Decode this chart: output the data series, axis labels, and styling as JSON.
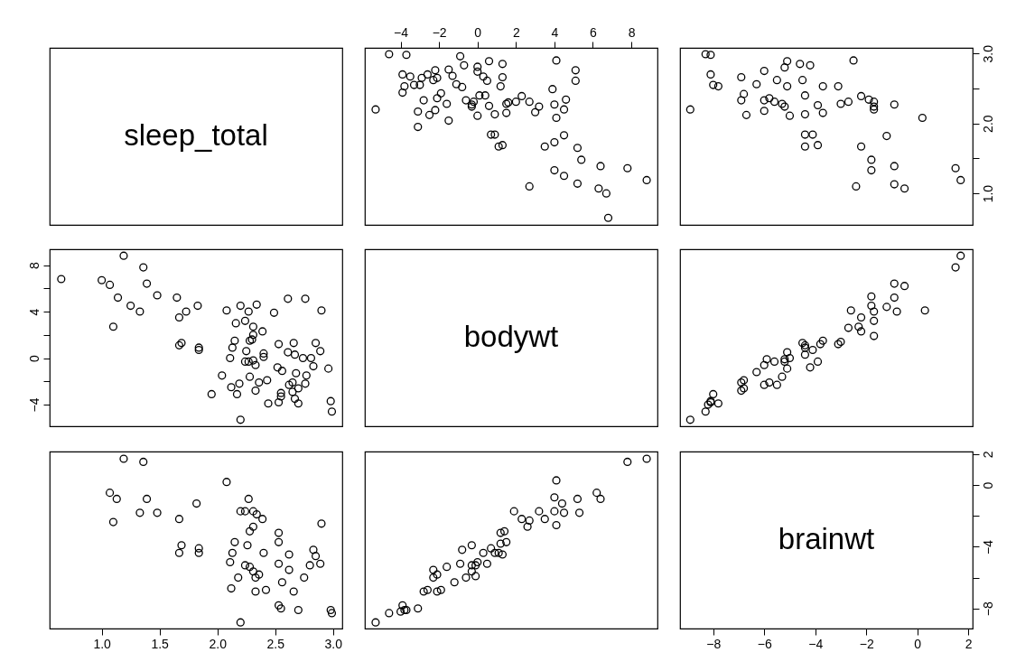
{
  "chart_data": [
    {
      "type": "other",
      "title": "sleep_total"
    },
    {
      "type": "scatter",
      "marker": "circle",
      "color": "#000000",
      "tick_labels": "x",
      "xlim": [
        -5.86,
        9.36
      ],
      "ylim": [
        0.55,
        3.08
      ],
      "xticks": [
        {
          "value": -4,
          "label": "−4"
        },
        {
          "value": -2,
          "label": "−2"
        },
        0,
        2,
        4,
        6,
        8
      ],
      "x": [
        6.8,
        6.7,
        6.3,
        8.8,
        5.2,
        2.7,
        4.5,
        4.0,
        7.8,
        6.4,
        5.4,
        5.2,
        3.5,
        4.0,
        1.1,
        1.3,
        4.5,
        0.9,
        0.7,
        4.1,
        -1.5,
        -3.1,
        0.0,
        0.9,
        1.5,
        3.0,
        -2.5,
        -3.1,
        -2.2,
        4.5,
        -5.3,
        3.2,
        4.0,
        0.6,
        -0.3,
        -0.3,
        -1.6,
        2.7,
        2.0,
        1.6,
        1.5,
        -0.2,
        -0.6,
        4.6,
        -2.8,
        -2.1,
        2.3,
        0.4,
        0.1,
        -1.9,
        -3.9,
        3.9,
        1.2,
        -0.8,
        -1.1,
        -3.8,
        -3.3,
        -3.0,
        5.1,
        0.5,
        -2.3,
        -2.9,
        1.3,
        0.3,
        -2.1,
        -1.3,
        -3.5,
        -3.9,
        -2.6,
        0.0,
        5.1,
        -2.2,
        -1.5,
        0.0,
        -0.7,
        1.3,
        0.6,
        4.1,
        -0.9,
        -3.7,
        -4.6
      ],
      "values": [
        0.65,
        1.0,
        1.07,
        1.19,
        1.14,
        1.1,
        1.25,
        1.33,
        1.36,
        1.39,
        1.48,
        1.65,
        1.67,
        1.73,
        1.67,
        1.69,
        1.83,
        1.84,
        1.84,
        2.08,
        2.04,
        1.95,
        2.11,
        2.13,
        2.15,
        2.16,
        2.12,
        2.17,
        2.19,
        2.2,
        2.2,
        2.24,
        2.27,
        2.25,
        2.24,
        2.27,
        2.28,
        2.31,
        2.31,
        2.3,
        2.28,
        2.31,
        2.33,
        2.34,
        2.33,
        2.36,
        2.39,
        2.4,
        2.4,
        2.43,
        2.44,
        2.49,
        2.53,
        2.52,
        2.56,
        2.53,
        2.55,
        2.55,
        2.61,
        2.61,
        2.62,
        2.65,
        2.66,
        2.67,
        2.65,
        2.68,
        2.67,
        2.7,
        2.7,
        2.74,
        2.76,
        2.76,
        2.77,
        2.81,
        2.83,
        2.85,
        2.89,
        2.9,
        2.96,
        2.98,
        2.99
      ]
    },
    {
      "type": "scatter",
      "marker": "circle",
      "color": "#000000",
      "tick_labels": "y",
      "xlim": [
        -9.3,
        2.17
      ],
      "ylim": [
        0.55,
        3.08
      ],
      "yticks": [
        {
          "value": 1,
          "label": "1.0"
        },
        {
          "value": 1.5,
          "label": null
        },
        {
          "value": 2,
          "label": "2.0"
        },
        {
          "value": 2.5,
          "label": null
        },
        {
          "value": 3,
          "label": "3.0"
        }
      ],
      "x": [
        1.7,
        1.5,
        -0.5,
        -0.9,
        -0.9,
        -2.4,
        -1.8,
        -1.8,
        -2.2,
        -1.2,
        -3.9,
        -4.4,
        -4.1,
        -4.4,
        0.2,
        -0.9,
        -1.7,
        -1.7,
        -1.7,
        -1.9,
        -2.2,
        -2.7,
        -3.0,
        -3.7,
        -3.9,
        -4.4,
        -5.0,
        -5.2,
        -5.3,
        -5.6,
        -5.8,
        -6.0,
        -6.0,
        -6.7,
        -6.9,
        -6.8,
        -8.9,
        -4.4,
        -3.1,
        -3.7,
        -5.1,
        -4.5,
        -5.5,
        -6.3,
        -6.9,
        -7.8,
        -8.0,
        -8.1,
        -6.0,
        -4.2,
        -4.6,
        -5.2,
        -5.1,
        -2.5,
        -8.1,
        -8.3
      ],
      "values": [
        1.19,
        1.36,
        1.07,
        1.13,
        1.39,
        1.1,
        1.33,
        1.48,
        1.67,
        1.82,
        1.69,
        1.67,
        1.84,
        1.84,
        2.08,
        2.27,
        2.2,
        2.24,
        2.31,
        2.34,
        2.39,
        2.31,
        2.28,
        2.15,
        2.26,
        2.13,
        2.11,
        2.24,
        2.28,
        2.31,
        2.36,
        2.33,
        2.18,
        2.12,
        2.33,
        2.42,
        2.2,
        2.4,
        2.53,
        2.53,
        2.53,
        2.62,
        2.62,
        2.56,
        2.66,
        2.53,
        2.55,
        2.7,
        2.75,
        2.83,
        2.85,
        2.8,
        2.89,
        2.9,
        2.98,
        2.99
      ]
    },
    {
      "type": "scatter",
      "marker": "circle",
      "color": "#000000",
      "tick_labels": "y",
      "xlim": [
        0.55,
        3.08
      ],
      "ylim": [
        -5.86,
        9.36
      ],
      "yticks": [
        {
          "value": -4,
          "label": "−4"
        },
        {
          "value": -2,
          "label": null
        },
        {
          "value": 0,
          "label": "0"
        },
        {
          "value": 2,
          "label": null
        },
        {
          "value": 4,
          "label": "4"
        },
        {
          "value": 6,
          "label": null
        },
        {
          "value": 8,
          "label": "8"
        }
      ],
      "x": [
        0.65,
        1.0,
        1.07,
        1.19,
        1.14,
        1.1,
        1.25,
        1.33,
        1.36,
        1.39,
        1.48,
        1.65,
        1.67,
        1.73,
        1.67,
        1.69,
        1.83,
        1.84,
        1.84,
        2.08,
        2.04,
        1.95,
        2.11,
        2.13,
        2.15,
        2.16,
        2.12,
        2.17,
        2.19,
        2.2,
        2.2,
        2.24,
        2.27,
        2.25,
        2.24,
        2.27,
        2.28,
        2.31,
        2.31,
        2.3,
        2.28,
        2.31,
        2.33,
        2.34,
        2.33,
        2.36,
        2.39,
        2.4,
        2.4,
        2.43,
        2.44,
        2.49,
        2.53,
        2.52,
        2.56,
        2.53,
        2.55,
        2.55,
        2.61,
        2.61,
        2.62,
        2.65,
        2.66,
        2.67,
        2.65,
        2.68,
        2.67,
        2.7,
        2.7,
        2.74,
        2.76,
        2.76,
        2.77,
        2.81,
        2.83,
        2.85,
        2.89,
        2.9,
        2.96,
        2.98,
        2.99
      ],
      "values": [
        6.8,
        6.7,
        6.3,
        8.8,
        5.2,
        2.7,
        4.5,
        4.0,
        7.8,
        6.4,
        5.4,
        5.2,
        3.5,
        4.0,
        1.1,
        1.3,
        4.5,
        0.9,
        0.7,
        4.1,
        -1.5,
        -3.1,
        0.0,
        0.9,
        1.5,
        3.0,
        -2.5,
        -3.1,
        -2.2,
        4.5,
        -5.3,
        3.2,
        4.0,
        0.6,
        -0.3,
        -0.3,
        -1.6,
        2.7,
        2.0,
        1.6,
        1.5,
        -0.2,
        -0.6,
        4.6,
        -2.8,
        -2.1,
        2.3,
        0.4,
        0.1,
        -1.9,
        -3.9,
        3.9,
        1.2,
        -0.8,
        -1.1,
        -3.8,
        -3.3,
        -3.0,
        5.1,
        0.5,
        -2.3,
        -2.9,
        1.3,
        0.3,
        -2.1,
        -1.3,
        -3.5,
        -3.9,
        -2.6,
        0.0,
        5.1,
        -2.2,
        -1.5,
        0.0,
        -0.7,
        1.3,
        0.6,
        4.1,
        -0.9,
        -3.7,
        -4.6
      ]
    },
    {
      "type": "other",
      "title": "bodywt"
    },
    {
      "type": "scatter",
      "marker": "circle",
      "color": "#000000",
      "tick_labels": false,
      "xlim": [
        -9.3,
        2.17
      ],
      "ylim": [
        -5.86,
        9.36
      ],
      "x": [
        -8.9,
        -8.3,
        -8.2,
        -8.1,
        -7.8,
        -8.1,
        -8.0,
        -6.9,
        -6.8,
        -6.9,
        -6.8,
        -5.5,
        -5.8,
        -6.0,
        -5.3,
        -6.3,
        -5.1,
        -4.2,
        -3.9,
        -6.0,
        -5.2,
        -5.2,
        -5.0,
        -5.6,
        -5.9,
        -4.4,
        -5.1,
        -4.1,
        -4.4,
        -4.4,
        -4.5,
        -3.1,
        -3.0,
        -3.7,
        -3.8,
        -1.7,
        -2.2,
        -2.3,
        -2.7,
        -1.7,
        -2.2,
        -0.8,
        -1.7,
        -2.6,
        -1.2,
        0.3,
        -1.8,
        -0.9,
        -1.8,
        -0.5,
        -0.9,
        1.5,
        1.7
      ],
      "values": [
        -5.3,
        -4.6,
        -4.0,
        -3.8,
        -3.9,
        -3.7,
        -3.1,
        -2.8,
        -2.6,
        -2.1,
        -1.9,
        -2.3,
        -2.1,
        -2.3,
        -1.6,
        -1.2,
        -0.9,
        -0.8,
        -0.3,
        -0.6,
        -0.3,
        -0.1,
        0.0,
        -0.3,
        -0.1,
        0.3,
        0.5,
        0.7,
        0.9,
        1.1,
        1.3,
        1.2,
        1.4,
        1.5,
        1.2,
        1.9,
        2.3,
        2.7,
        2.6,
        3.2,
        3.5,
        4.0,
        4.0,
        4.1,
        4.4,
        4.1,
        4.5,
        5.2,
        5.3,
        6.2,
        6.4,
        7.8,
        8.8
      ]
    },
    {
      "type": "scatter",
      "marker": "circle",
      "color": "#000000",
      "tick_labels": "x",
      "xlim": [
        0.55,
        3.08
      ],
      "ylim": [
        -9.3,
        2.17
      ],
      "xticks": [
        {
          "value": 1,
          "label": "1.0"
        },
        {
          "value": 1.5,
          "label": "1.5"
        },
        {
          "value": 2,
          "label": "2.0"
        },
        {
          "value": 2.5,
          "label": "2.5"
        },
        {
          "value": 3,
          "label": "3.0"
        }
      ],
      "x": [
        1.19,
        1.36,
        1.07,
        1.13,
        1.39,
        1.1,
        1.33,
        1.48,
        1.67,
        1.82,
        1.69,
        1.67,
        1.84,
        1.84,
        2.08,
        2.27,
        2.2,
        2.24,
        2.31,
        2.34,
        2.39,
        2.31,
        2.28,
        2.15,
        2.26,
        2.13,
        2.11,
        2.24,
        2.28,
        2.31,
        2.36,
        2.33,
        2.18,
        2.12,
        2.33,
        2.42,
        2.2,
        2.4,
        2.53,
        2.53,
        2.53,
        2.62,
        2.62,
        2.56,
        2.66,
        2.53,
        2.55,
        2.7,
        2.75,
        2.83,
        2.85,
        2.8,
        2.89,
        2.9,
        2.98,
        2.99
      ],
      "values": [
        1.7,
        1.5,
        -0.5,
        -0.9,
        -0.9,
        -2.4,
        -1.8,
        -1.8,
        -2.2,
        -1.2,
        -3.9,
        -4.4,
        -4.1,
        -4.4,
        0.2,
        -0.9,
        -1.7,
        -1.7,
        -1.7,
        -1.9,
        -2.2,
        -2.7,
        -3.0,
        -3.7,
        -3.9,
        -4.4,
        -5.0,
        -5.2,
        -5.3,
        -5.6,
        -5.8,
        -6.0,
        -6.0,
        -6.7,
        -6.9,
        -6.8,
        -8.9,
        -4.4,
        -3.1,
        -3.7,
        -5.1,
        -4.5,
        -5.5,
        -6.3,
        -6.9,
        -7.8,
        -8.0,
        -8.1,
        -6.0,
        -4.2,
        -4.6,
        -5.2,
        -5.1,
        -2.5,
        -8.1,
        -8.3
      ]
    },
    {
      "type": "scatter",
      "marker": "circle",
      "color": "#000000",
      "tick_labels": false,
      "xlim": [
        -5.86,
        9.36
      ],
      "ylim": [
        -9.3,
        2.17
      ],
      "x": [
        -5.3,
        -4.6,
        -4.0,
        -3.8,
        -3.9,
        -3.7,
        -3.1,
        -2.8,
        -2.6,
        -2.1,
        -1.9,
        -2.3,
        -2.1,
        -2.3,
        -1.6,
        -1.2,
        -0.9,
        -0.8,
        -0.3,
        -0.6,
        -0.3,
        -0.1,
        0.0,
        -0.3,
        -0.1,
        0.3,
        0.5,
        0.7,
        0.9,
        1.1,
        1.3,
        1.2,
        1.4,
        1.5,
        1.2,
        1.9,
        2.3,
        2.7,
        2.6,
        3.2,
        3.5,
        4.0,
        4.0,
        4.1,
        4.4,
        4.1,
        4.5,
        5.2,
        5.3,
        6.2,
        6.4,
        7.8,
        8.8
      ],
      "values": [
        -8.9,
        -8.3,
        -8.2,
        -8.1,
        -7.8,
        -8.1,
        -8.0,
        -6.9,
        -6.8,
        -6.9,
        -6.8,
        -5.5,
        -5.8,
        -6.0,
        -5.3,
        -6.3,
        -5.1,
        -4.2,
        -3.9,
        -6.0,
        -5.2,
        -5.2,
        -5.0,
        -5.6,
        -5.9,
        -4.4,
        -5.1,
        -4.1,
        -4.4,
        -4.4,
        -4.5,
        -3.1,
        -3.0,
        -3.7,
        -3.8,
        -1.7,
        -2.2,
        -2.3,
        -2.7,
        -1.7,
        -2.2,
        -0.8,
        -1.7,
        -2.6,
        -1.2,
        0.3,
        -1.8,
        -0.9,
        -1.8,
        -0.5,
        -0.9,
        1.5,
        1.7
      ]
    },
    {
      "type": "scatter",
      "marker": "circle",
      "color": "#000000",
      "title": "brainwt",
      "xlim": [
        -9.3,
        2.17
      ],
      "ylim": [
        -9.3,
        2.17
      ],
      "xticks": [
        {
          "value": -8,
          "label": "−8"
        },
        {
          "value": -6,
          "label": "−6"
        },
        {
          "value": -4,
          "label": "−4"
        },
        {
          "value": -2,
          "label": "−2"
        },
        0,
        2
      ],
      "yticks": [
        {
          "value": -8,
          "label": "−8"
        },
        {
          "value": -6,
          "label": null
        },
        {
          "value": -4,
          "label": "−4"
        },
        {
          "value": -2,
          "label": null
        },
        {
          "value": 0,
          "label": "0"
        },
        {
          "value": 2,
          "label": "2"
        }
      ]
    }
  ]
}
